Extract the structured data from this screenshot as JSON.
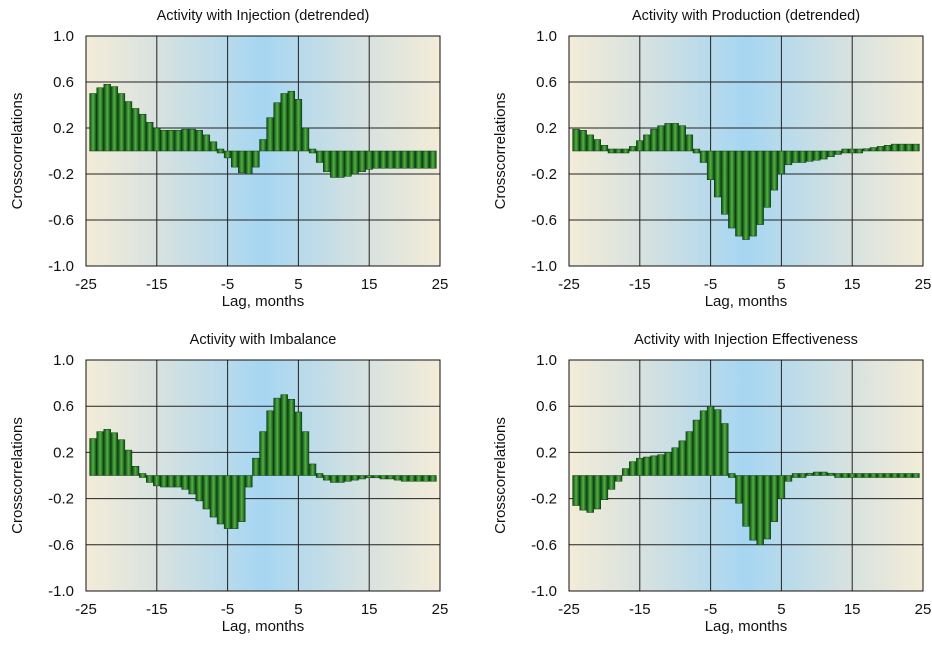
{
  "figure": {
    "xlabel": "Lag, months",
    "ylabel": "Crosscorrelations"
  },
  "chart_data": [
    {
      "type": "bar",
      "title": "Activity with Injection (detrended)",
      "xlabel": "Lag, months",
      "ylabel": "Crosscorrelations",
      "xlim": [
        -25,
        25
      ],
      "ylim": [
        -1.0,
        1.0
      ],
      "xticks": [
        "-25",
        "-15",
        "-5",
        "5",
        "15",
        "25"
      ],
      "yticks": [
        "1.0",
        "0.6",
        "0.2",
        "-0.2",
        "-0.6",
        "-1.0"
      ],
      "grid": true,
      "x": [
        -24,
        -23,
        -22,
        -21,
        -20,
        -19,
        -18,
        -17,
        -16,
        -15,
        -14,
        -13,
        -12,
        -11,
        -10,
        -9,
        -8,
        -7,
        -6,
        -5,
        -4,
        -3,
        -2,
        -1,
        0,
        1,
        2,
        3,
        4,
        5,
        6,
        7,
        8,
        9,
        10,
        11,
        12,
        13,
        14,
        15,
        16,
        17,
        18,
        19,
        20,
        21,
        22,
        23,
        24
      ],
      "values": [
        0.5,
        0.55,
        0.58,
        0.56,
        0.5,
        0.43,
        0.37,
        0.32,
        0.25,
        0.2,
        0.18,
        0.18,
        0.18,
        0.19,
        0.19,
        0.18,
        0.14,
        0.08,
        0.0,
        -0.06,
        -0.14,
        -0.19,
        -0.2,
        -0.14,
        0.1,
        0.29,
        0.42,
        0.5,
        0.52,
        0.45,
        0.2,
        0.0,
        -0.1,
        -0.18,
        -0.23,
        -0.23,
        -0.22,
        -0.2,
        -0.18,
        -0.16,
        -0.15,
        -0.15,
        -0.15,
        -0.15,
        -0.15,
        -0.15,
        -0.15,
        -0.15,
        -0.15
      ]
    },
    {
      "type": "bar",
      "title": "Activity with Production (detrended)",
      "xlabel": "Lag, months",
      "ylabel": "Crosscorrelations",
      "xlim": [
        -25,
        25
      ],
      "ylim": [
        -1.0,
        1.0
      ],
      "xticks": [
        "-25",
        "-15",
        "-5",
        "5",
        "15",
        "25"
      ],
      "yticks": [
        "1.0",
        "0.6",
        "0.2",
        "-0.2",
        "-0.6",
        "-1.0"
      ],
      "grid": true,
      "x": [
        -24,
        -23,
        -22,
        -21,
        -20,
        -19,
        -18,
        -17,
        -16,
        -15,
        -14,
        -13,
        -12,
        -11,
        -10,
        -9,
        -8,
        -7,
        -6,
        -5,
        -4,
        -3,
        -2,
        -1,
        0,
        1,
        2,
        3,
        4,
        5,
        6,
        7,
        8,
        9,
        10,
        11,
        12,
        13,
        14,
        15,
        16,
        17,
        18,
        19,
        20,
        21,
        22,
        23,
        24
      ],
      "values": [
        0.19,
        0.18,
        0.14,
        0.1,
        0.05,
        0.01,
        -0.01,
        0.0,
        0.04,
        0.09,
        0.14,
        0.19,
        0.22,
        0.24,
        0.24,
        0.22,
        0.14,
        0.0,
        -0.1,
        -0.25,
        -0.4,
        -0.55,
        -0.67,
        -0.74,
        -0.77,
        -0.74,
        -0.64,
        -0.49,
        -0.34,
        -0.2,
        -0.12,
        -0.1,
        -0.1,
        -0.09,
        -0.08,
        -0.07,
        -0.05,
        -0.03,
        -0.01,
        0.0,
        0.01,
        0.02,
        0.03,
        0.04,
        0.05,
        0.06,
        0.06,
        0.06,
        0.06
      ]
    },
    {
      "type": "bar",
      "title": "Activity with Imbalance",
      "xlabel": "Lag, months",
      "ylabel": "Crosscorrelations",
      "xlim": [
        -25,
        25
      ],
      "ylim": [
        -1.0,
        1.0
      ],
      "xticks": [
        "-25",
        "-15",
        "-5",
        "5",
        "15",
        "25"
      ],
      "yticks": [
        "1.0",
        "0.6",
        "0.2",
        "-0.2",
        "-0.6",
        "-1.0"
      ],
      "grid": true,
      "x": [
        -24,
        -23,
        -22,
        -21,
        -20,
        -19,
        -18,
        -17,
        -16,
        -15,
        -14,
        -13,
        -12,
        -11,
        -10,
        -9,
        -8,
        -7,
        -6,
        -5,
        -4,
        -3,
        -2,
        -1,
        0,
        1,
        2,
        3,
        4,
        5,
        6,
        7,
        8,
        9,
        10,
        11,
        12,
        13,
        14,
        15,
        16,
        17,
        18,
        19,
        20,
        21,
        22,
        23,
        24
      ],
      "values": [
        0.32,
        0.38,
        0.4,
        0.37,
        0.31,
        0.22,
        0.08,
        0.0,
        -0.06,
        -0.09,
        -0.1,
        -0.1,
        -0.1,
        -0.12,
        -0.16,
        -0.22,
        -0.29,
        -0.36,
        -0.42,
        -0.46,
        -0.46,
        -0.4,
        -0.1,
        0.15,
        0.38,
        0.56,
        0.67,
        0.7,
        0.66,
        0.55,
        0.38,
        0.1,
        0.0,
        -0.04,
        -0.06,
        -0.06,
        -0.05,
        -0.04,
        -0.03,
        -0.02,
        -0.02,
        -0.03,
        -0.03,
        -0.04,
        -0.05,
        -0.05,
        -0.05,
        -0.05,
        -0.05
      ]
    },
    {
      "type": "bar",
      "title": "Activity with Injection Effectiveness",
      "xlabel": "Lag, months",
      "ylabel": "Crosscorrelations",
      "xlim": [
        -25,
        25
      ],
      "ylim": [
        -1.0,
        1.0
      ],
      "xticks": [
        "-25",
        "-15",
        "-5",
        "5",
        "15",
        "25"
      ],
      "yticks": [
        "1.0",
        "0.6",
        "0.2",
        "-0.2",
        "-0.6",
        "-1.0"
      ],
      "grid": true,
      "x": [
        -24,
        -23,
        -22,
        -21,
        -20,
        -19,
        -18,
        -17,
        -16,
        -15,
        -14,
        -13,
        -12,
        -11,
        -10,
        -9,
        -8,
        -7,
        -6,
        -5,
        -4,
        -3,
        -2,
        -1,
        0,
        1,
        2,
        3,
        4,
        5,
        6,
        7,
        8,
        9,
        10,
        11,
        12,
        13,
        14,
        15,
        16,
        17,
        18,
        19,
        20,
        21,
        22,
        23,
        24
      ],
      "values": [
        -0.26,
        -0.3,
        -0.32,
        -0.29,
        -0.21,
        -0.12,
        -0.05,
        0.06,
        0.12,
        0.15,
        0.16,
        0.17,
        0.18,
        0.2,
        0.24,
        0.3,
        0.38,
        0.48,
        0.56,
        0.6,
        0.57,
        0.45,
        0.0,
        -0.24,
        -0.44,
        -0.56,
        -0.6,
        -0.55,
        -0.4,
        -0.2,
        -0.05,
        0.0,
        0.0,
        0.02,
        0.03,
        0.03,
        0.02,
        0.01,
        0.0,
        0.0,
        -0.01,
        -0.01,
        -0.01,
        0.0,
        0.0,
        0.0,
        0.0,
        0.0,
        0.0
      ]
    }
  ]
}
